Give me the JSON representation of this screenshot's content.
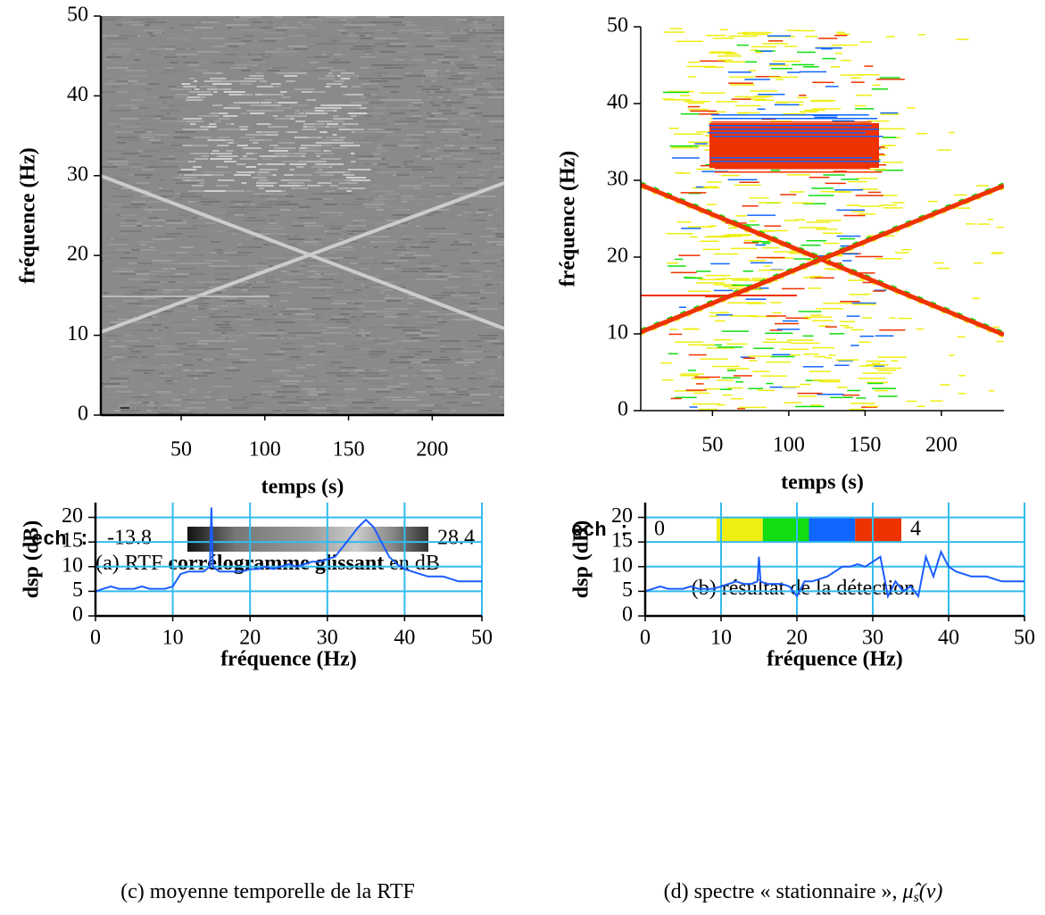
{
  "chart_data": [
    {
      "type": "heatmap",
      "xlabel": "temps (s)",
      "ylabel": "fréquence (Hz)",
      "xlim": [
        2,
        243
      ],
      "ylim": [
        0,
        50
      ],
      "xticks": [
        50,
        100,
        150,
        200
      ],
      "yticks": [
        0,
        10,
        20,
        30,
        40,
        50
      ],
      "colorbar": {
        "label": "ech :",
        "vmin": -13.8,
        "vmax": 28.4
      },
      "caption": [
        "(a) RTF ",
        "corrélogramme glissant",
        " en dB"
      ]
    },
    {
      "type": "detection",
      "xlabel": "temps (s)",
      "ylabel": "fréquence (Hz)",
      "xlim": [
        3,
        241
      ],
      "ylim": [
        0,
        50
      ],
      "xticks": [
        50,
        100,
        150,
        200
      ],
      "yticks": [
        0,
        10,
        20,
        30,
        40,
        50
      ],
      "colorbar": {
        "label": "ech :",
        "vmin": 0,
        "vmax": 4,
        "colors": [
          "#eeee11",
          "#11dd11",
          "#1166ff",
          "#ee3300"
        ]
      },
      "caption": [
        "(b) résultat de la détection"
      ]
    },
    {
      "type": "line",
      "xlabel": "fréquence (Hz)",
      "ylabel": "dsp (dB)",
      "color": "#1a5cff",
      "grid": true,
      "xlim": [
        0,
        50
      ],
      "ylim": [
        0,
        23
      ],
      "xticks": [
        0,
        10,
        20,
        30,
        40,
        50
      ],
      "yticks": [
        0,
        5,
        10,
        15,
        20
      ],
      "x": [
        0,
        1,
        2,
        3,
        4,
        5,
        6,
        7,
        8,
        9,
        10,
        11,
        12,
        13,
        14,
        14.8,
        15,
        15.2,
        16,
        17,
        18,
        19,
        20,
        21,
        22,
        23,
        24,
        25,
        26,
        27,
        28,
        29,
        30,
        31,
        32,
        33,
        34,
        35,
        36,
        37,
        38,
        39,
        40,
        41,
        42,
        43,
        44,
        45,
        46,
        47,
        48,
        49,
        50
      ],
      "values": [
        5,
        5.5,
        6,
        5.5,
        5.5,
        5.5,
        6,
        5.5,
        5.5,
        5.5,
        6,
        8.5,
        9,
        9,
        9,
        10,
        22,
        10,
        9,
        9,
        9,
        9,
        9.5,
        9.5,
        10,
        9.5,
        10,
        10.5,
        10,
        10.5,
        11,
        11,
        11.5,
        12,
        14,
        16,
        18,
        19.5,
        18,
        15,
        12,
        10.5,
        9.5,
        9,
        8.5,
        8,
        8,
        8,
        7.5,
        7,
        7,
        7,
        7
      ],
      "caption": [
        "(c) moyenne temporelle de la RTF"
      ]
    },
    {
      "type": "line",
      "xlabel": "fréquence (Hz)",
      "ylabel": "dsp (dB)",
      "color": "#1a5cff",
      "grid": true,
      "xlim": [
        0,
        50
      ],
      "ylim": [
        0,
        23
      ],
      "xticks": [
        0,
        10,
        20,
        30,
        40,
        50
      ],
      "yticks": [
        0,
        5,
        10,
        15,
        20
      ],
      "x": [
        0,
        1,
        2,
        3,
        4,
        5,
        6,
        7,
        8,
        9,
        10,
        11,
        12,
        13,
        14,
        14.8,
        15,
        15.2,
        16,
        17,
        18,
        19,
        20,
        21,
        22,
        23,
        24,
        25,
        26,
        27,
        28,
        29,
        30,
        31,
        32,
        33,
        34,
        35,
        36,
        37,
        38,
        39,
        40,
        41,
        42,
        43,
        44,
        45,
        46,
        47,
        48,
        49,
        50
      ],
      "values": [
        5,
        5.5,
        6,
        5.5,
        5.5,
        5.5,
        6,
        5.5,
        5.5,
        5.5,
        6,
        6.5,
        7,
        6.5,
        6.5,
        7,
        12,
        7,
        6.5,
        6.5,
        6.5,
        6,
        4,
        7,
        7,
        7.5,
        8,
        9,
        10,
        10,
        10.5,
        10,
        11,
        12,
        4,
        7,
        5,
        6,
        4,
        12,
        8,
        13,
        10,
        9,
        8.5,
        8,
        8,
        8,
        7.5,
        7,
        7,
        7,
        7
      ],
      "caption": [
        "(d) spectre « stationnaire », "
      ],
      "symbol": "μ̂",
      "subscript": "s",
      "argument": "(ν)"
    }
  ]
}
